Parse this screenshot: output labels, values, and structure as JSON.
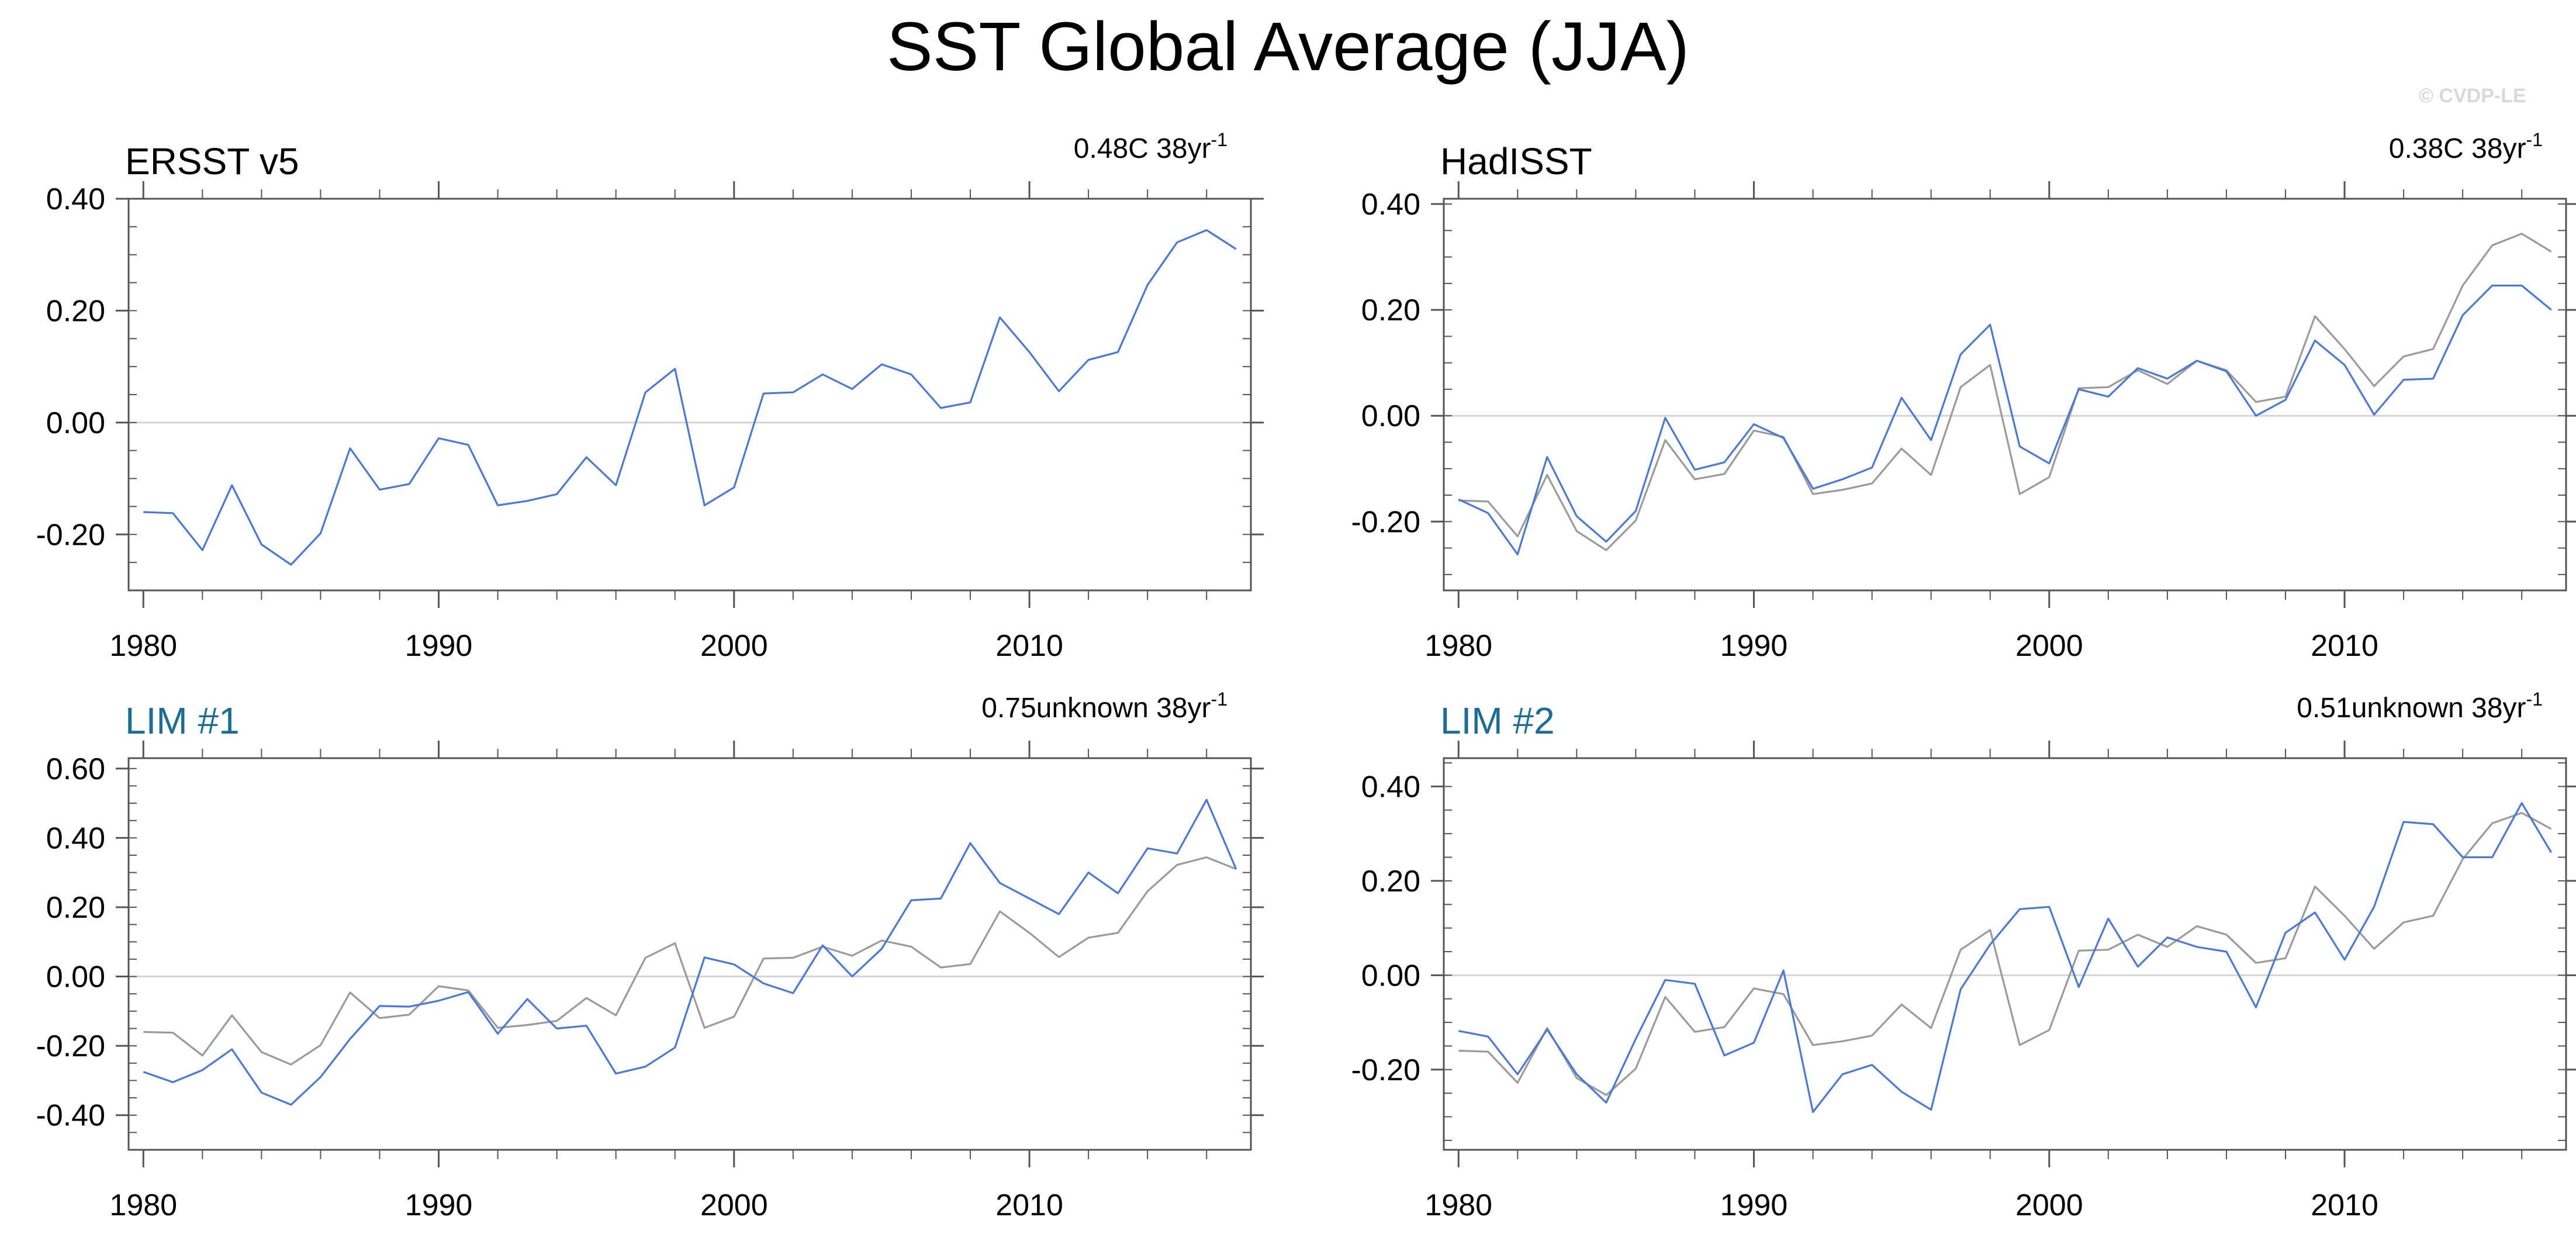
{
  "figure": {
    "title": "SST Global Average (JJA)",
    "watermark": "© CVDP-LE"
  },
  "colors": {
    "model_line": "#4a78d8",
    "obs_line": "#9a9a9a",
    "zero_line": "#d4d4d4",
    "axis": "#555555",
    "obs_title": "#000000",
    "model_title": "#1a6e96"
  },
  "chart_data": [
    {
      "type": "line",
      "title": "ERSST v5",
      "title_style": "obs",
      "trend_text": "0.48C 38yr",
      "trend_sup": "-1",
      "xlim": [
        1979.5,
        2017.5
      ],
      "ylim": [
        -0.3,
        0.4
      ],
      "xticks": [
        "1980",
        "1990",
        "2000",
        "2010"
      ],
      "yticks": [
        "-0.20",
        "0.00",
        "0.20",
        "0.40"
      ],
      "x_start": 1980,
      "series": [
        {
          "name": "ERSST v5",
          "role": "main",
          "values": [
            -0.16,
            -0.162,
            -0.228,
            -0.112,
            -0.218,
            -0.254,
            -0.198,
            -0.046,
            -0.12,
            -0.11,
            -0.028,
            -0.04,
            -0.148,
            -0.14,
            -0.128,
            -0.062,
            -0.112,
            0.054,
            0.096,
            -0.148,
            -0.116,
            0.052,
            0.054,
            0.086,
            0.06,
            0.104,
            0.086,
            0.026,
            0.036,
            0.188,
            0.126,
            0.056,
            0.112,
            0.126,
            0.246,
            0.322,
            0.344,
            0.31
          ]
        }
      ]
    },
    {
      "type": "line",
      "title": "HadISST",
      "title_style": "obs",
      "trend_text": "0.38C 38yr",
      "trend_sup": "-1",
      "xlim": [
        1979.5,
        2017.5
      ],
      "ylim": [
        -0.33,
        0.41
      ],
      "xticks": [
        "1980",
        "1990",
        "2000",
        "2010"
      ],
      "yticks": [
        "-0.20",
        "0.00",
        "0.20",
        "0.40"
      ],
      "x_start": 1980,
      "series": [
        {
          "name": "ERSST v5",
          "role": "reference",
          "values": [
            -0.16,
            -0.162,
            -0.228,
            -0.112,
            -0.218,
            -0.254,
            -0.198,
            -0.046,
            -0.12,
            -0.11,
            -0.028,
            -0.04,
            -0.148,
            -0.14,
            -0.128,
            -0.062,
            -0.112,
            0.054,
            0.096,
            -0.148,
            -0.116,
            0.052,
            0.054,
            0.086,
            0.06,
            0.104,
            0.086,
            0.026,
            0.036,
            0.188,
            0.126,
            0.056,
            0.112,
            0.126,
            0.246,
            0.322,
            0.344,
            0.31
          ]
        },
        {
          "name": "HadISST",
          "role": "main",
          "values": [
            -0.158,
            -0.184,
            -0.262,
            -0.078,
            -0.19,
            -0.238,
            -0.18,
            -0.004,
            -0.102,
            -0.088,
            -0.016,
            -0.042,
            -0.138,
            -0.12,
            -0.098,
            0.034,
            -0.046,
            0.116,
            0.172,
            -0.058,
            -0.09,
            0.05,
            0.036,
            0.09,
            0.07,
            0.104,
            0.084,
            0.0,
            0.03,
            0.142,
            0.096,
            0.002,
            0.068,
            0.07,
            0.19,
            0.246,
            0.246,
            0.2
          ]
        }
      ]
    },
    {
      "type": "line",
      "title": "LIM #1",
      "title_style": "model",
      "trend_text": "0.75unknown 38yr",
      "trend_sup": "-1",
      "xlim": [
        1979.5,
        2017.5
      ],
      "ylim": [
        -0.5,
        0.63
      ],
      "xticks": [
        "1980",
        "1990",
        "2000",
        "2010"
      ],
      "yticks": [
        "-0.40",
        "-0.20",
        "0.00",
        "0.20",
        "0.40",
        "0.60"
      ],
      "x_start": 1980,
      "series": [
        {
          "name": "ERSST v5",
          "role": "reference",
          "values": [
            -0.16,
            -0.162,
            -0.228,
            -0.112,
            -0.218,
            -0.254,
            -0.198,
            -0.046,
            -0.12,
            -0.11,
            -0.028,
            -0.04,
            -0.148,
            -0.14,
            -0.128,
            -0.062,
            -0.112,
            0.054,
            0.096,
            -0.148,
            -0.116,
            0.052,
            0.054,
            0.086,
            0.06,
            0.104,
            0.086,
            0.026,
            0.036,
            0.188,
            0.126,
            0.056,
            0.112,
            0.126,
            0.246,
            0.322,
            0.344,
            0.31
          ]
        },
        {
          "name": "LIM #1",
          "role": "main",
          "values": [
            -0.275,
            -0.305,
            -0.27,
            -0.21,
            -0.335,
            -0.37,
            -0.29,
            -0.18,
            -0.085,
            -0.087,
            -0.07,
            -0.045,
            -0.165,
            -0.065,
            -0.15,
            -0.142,
            -0.28,
            -0.26,
            -0.205,
            0.055,
            0.035,
            -0.02,
            -0.048,
            0.09,
            0.0,
            0.08,
            0.22,
            0.225,
            0.385,
            0.27,
            0.225,
            0.18,
            0.3,
            0.24,
            0.37,
            0.355,
            0.51,
            0.31
          ]
        }
      ]
    },
    {
      "type": "line",
      "title": "LIM #2",
      "title_style": "model",
      "trend_text": "0.51unknown 38yr",
      "trend_sup": "-1",
      "xlim": [
        1979.5,
        2017.5
      ],
      "ylim": [
        -0.37,
        0.46
      ],
      "xticks": [
        "1980",
        "1990",
        "2000",
        "2010"
      ],
      "yticks": [
        "-0.20",
        "0.00",
        "0.20",
        "0.40"
      ],
      "x_start": 1980,
      "series": [
        {
          "name": "ERSST v5",
          "role": "reference",
          "values": [
            -0.16,
            -0.162,
            -0.228,
            -0.112,
            -0.218,
            -0.254,
            -0.198,
            -0.046,
            -0.12,
            -0.11,
            -0.028,
            -0.04,
            -0.148,
            -0.14,
            -0.128,
            -0.062,
            -0.112,
            0.054,
            0.096,
            -0.148,
            -0.116,
            0.052,
            0.054,
            0.086,
            0.06,
            0.104,
            0.086,
            0.026,
            0.036,
            0.188,
            0.126,
            0.056,
            0.112,
            0.126,
            0.246,
            0.322,
            0.344,
            0.31
          ]
        },
        {
          "name": "LIM #2",
          "role": "main",
          "values": [
            -0.118,
            -0.13,
            -0.21,
            -0.115,
            -0.21,
            -0.27,
            -0.135,
            -0.01,
            -0.018,
            -0.17,
            -0.143,
            0.01,
            -0.29,
            -0.21,
            -0.19,
            -0.247,
            -0.285,
            -0.03,
            0.065,
            0.14,
            0.145,
            -0.025,
            0.12,
            0.018,
            0.08,
            0.06,
            0.05,
            -0.068,
            0.09,
            0.133,
            0.033,
            0.145,
            0.325,
            0.32,
            0.25,
            0.25,
            0.365,
            0.26
          ]
        }
      ]
    }
  ]
}
